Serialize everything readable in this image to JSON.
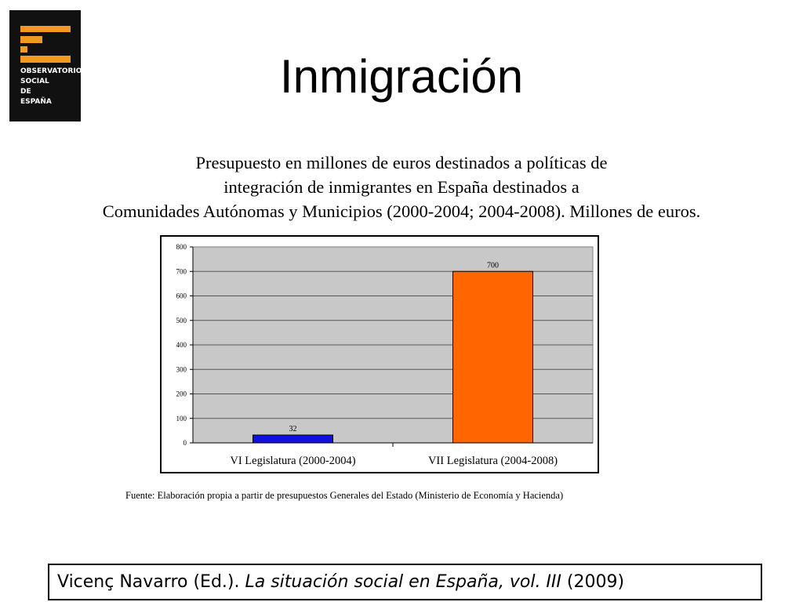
{
  "slide": {
    "title": "Inmigración",
    "subtitle_lines": [
      "Presupuesto en millones de euros destinados a políticas de",
      "integración de inmigrantes en España destinados a",
      "Comunidades Autónomas y Municipios (2000-2004; 2004-2008). Millones de euros."
    ],
    "source": "Fuente: Elaboración propia a partir de presupuestos Generales del Estado (Ministerio de Economía y Hacienda)",
    "citation": {
      "author": "Vicenç Navarro (Ed.).",
      "work": "La situación social en España, vol. III",
      "year": "(2009)"
    }
  },
  "logo": {
    "lines": [
      "OBSERVATORIO",
      "SOCIAL",
      "DE",
      "ESPAÑA"
    ],
    "accent_color": "#f29a1f",
    "background_color": "#111111"
  },
  "chart_data": {
    "type": "bar",
    "categories": [
      "VI Legislatura (2000-2004)",
      "VII Legislatura (2004-2008)"
    ],
    "values": [
      32,
      700
    ],
    "data_labels": [
      "32",
      "700"
    ],
    "bar_colors": [
      "#1010e0",
      "#ff6600"
    ],
    "ylim": [
      0,
      800
    ],
    "yticks": [
      0,
      100,
      200,
      300,
      400,
      500,
      600,
      700,
      800
    ],
    "grid": true,
    "plot_background": "#c8c8c8",
    "title": "",
    "xlabel": "",
    "ylabel": ""
  }
}
